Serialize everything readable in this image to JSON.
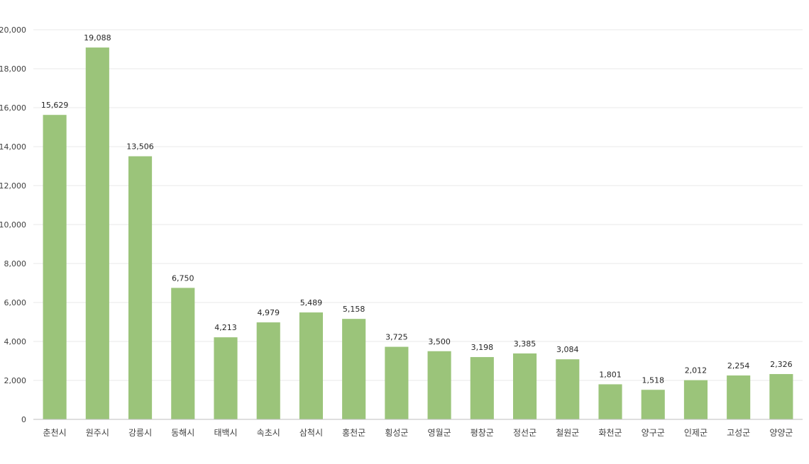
{
  "chart_data": {
    "type": "bar",
    "categories": [
      "춘천시",
      "원주시",
      "강릉시",
      "동해시",
      "태백시",
      "속초시",
      "삼척시",
      "홍천군",
      "횡성군",
      "영월군",
      "평창군",
      "정선군",
      "철원군",
      "화천군",
      "양구군",
      "인제군",
      "고성군",
      "양양군"
    ],
    "values": [
      15629,
      19088,
      13506,
      6750,
      4213,
      4979,
      5489,
      5158,
      3725,
      3500,
      3198,
      3385,
      3084,
      1801,
      1518,
      2012,
      2254,
      2326
    ],
    "value_labels": [
      "15,629",
      "19,088",
      "13,506",
      "6,750",
      "4,213",
      "4,979",
      "5,489",
      "5,158",
      "3,725",
      "3,500",
      "3,198",
      "3,385",
      "3,084",
      "1,801",
      "1,518",
      "2,012",
      "2,254",
      "2,326"
    ],
    "yticks": [
      0,
      2000,
      4000,
      6000,
      8000,
      10000,
      12000,
      14000,
      16000,
      18000,
      20000
    ],
    "ytick_labels": [
      "0",
      "2,000",
      "4,000",
      "6,000",
      "8,000",
      "10,000",
      "12,000",
      "14,000",
      "16,000",
      "18,000",
      "20,000"
    ],
    "ylim": [
      0,
      20000
    ],
    "title": "",
    "xlabel": "",
    "ylabel": "",
    "grid": true,
    "legend": "none",
    "bar_color": "#9bc47a"
  }
}
